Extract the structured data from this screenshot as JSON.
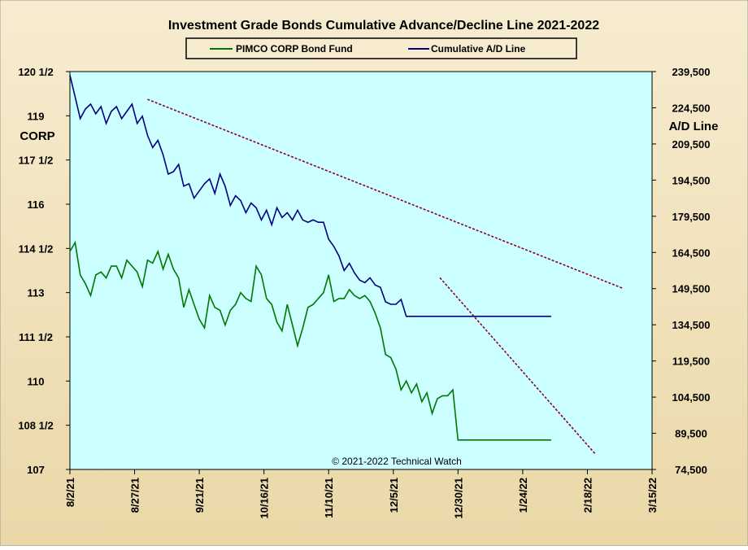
{
  "chart_data": {
    "type": "line",
    "title": "Investment Grade Bonds Cumulative  Advance/Decline  Line  2021-2022",
    "copyright": "© 2021-2022  Technical  Watch",
    "left_axis_label": "CORP",
    "right_axis_label": "A/D Line",
    "colors": {
      "background": "#f5e8c8",
      "plot_area": "#ccffff",
      "corp_line": "#007700",
      "ad_line": "#000080",
      "trendline": "#8b0020"
    },
    "grid": false,
    "legend_position": "top-center",
    "x_ticks": [
      "8/2/21",
      "8/27/21",
      "9/21/21",
      "10/16/21",
      "11/10/21",
      "12/5/21",
      "12/30/21",
      "1/24/22",
      "2/18/22",
      "3/15/22"
    ],
    "x_tick_days": [
      0,
      25,
      50,
      75,
      100,
      125,
      150,
      175,
      200,
      225
    ],
    "xlim": [
      0,
      225
    ],
    "left_axis": {
      "ylim": [
        107,
        120.5
      ],
      "ticks": [
        107,
        108.5,
        110,
        111.5,
        113,
        114.5,
        116,
        117.5,
        119,
        120.5
      ],
      "tick_labels": [
        "107",
        "108 1/2",
        "110",
        "111 1/2",
        "113",
        "114 1/2",
        "116",
        "117 1/2",
        "119",
        "120 1/2"
      ]
    },
    "right_axis": {
      "ylim": [
        74500,
        239500
      ],
      "ticks": [
        74500,
        89500,
        104500,
        119500,
        134500,
        149500,
        164500,
        179500,
        194500,
        209500,
        224500,
        239500
      ],
      "tick_labels": [
        "74,500",
        "89,500",
        "104,500",
        "119,500",
        "134,500",
        "149,500",
        "164,500",
        "179,500",
        "194,500",
        "209,500",
        "224,500",
        "239,500"
      ]
    },
    "series": [
      {
        "name": "PIMCO CORP Bond Fund",
        "axis": "left",
        "x": [
          0,
          2,
          4,
          6,
          8,
          10,
          12,
          14,
          16,
          18,
          20,
          22,
          24,
          26,
          28,
          30,
          32,
          34,
          36,
          38,
          40,
          42,
          44,
          46,
          48,
          50,
          52,
          54,
          56,
          58,
          60,
          62,
          64,
          66,
          68,
          70,
          72,
          74,
          76,
          78,
          80,
          82,
          84,
          86,
          88,
          90,
          92,
          94,
          96,
          98,
          100,
          102,
          104,
          106,
          108,
          110,
          112,
          114,
          116,
          118,
          120,
          122,
          124,
          126,
          128,
          130,
          132,
          134,
          136,
          138,
          140,
          142,
          144,
          146,
          148,
          150,
          152,
          154,
          156,
          158,
          160,
          162,
          164,
          166,
          168,
          170,
          172,
          174,
          176,
          178,
          180,
          182,
          184,
          186
        ],
        "y": [
          114.4,
          114.7,
          113.6,
          113.3,
          112.9,
          113.6,
          113.7,
          113.5,
          113.9,
          113.9,
          113.5,
          114.1,
          113.9,
          113.7,
          113.2,
          114.1,
          114.0,
          114.4,
          113.8,
          114.3,
          113.8,
          113.5,
          112.5,
          113.1,
          112.6,
          112.1,
          111.8,
          112.9,
          112.5,
          112.4,
          111.9,
          112.4,
          112.6,
          113.0,
          112.8,
          112.7,
          113.9,
          113.6,
          112.8,
          112.6,
          112.0,
          111.7,
          112.6,
          111.9,
          111.2,
          111.8,
          112.5,
          112.6,
          112.8,
          113.0,
          113.6,
          112.7,
          112.8,
          112.8,
          113.1,
          112.9,
          112.8,
          112.9,
          112.7,
          112.3,
          111.8,
          110.9,
          110.8,
          110.4,
          109.7,
          110.0,
          109.6,
          109.9,
          109.3,
          109.6,
          108.9,
          109.4,
          109.5,
          109.5,
          109.7,
          108.0,
          108.0,
          108.0,
          108.0,
          108.0,
          108.0,
          108.0,
          108.0,
          108.0,
          108.0,
          108.0,
          108.0,
          108.0,
          108.0,
          108.0,
          108.0,
          108.0,
          108.0,
          108.0
        ]
      },
      {
        "name": "Cumulative A/D Line",
        "axis": "right",
        "x": [
          0,
          2,
          4,
          6,
          8,
          10,
          12,
          14,
          16,
          18,
          20,
          22,
          24,
          26,
          28,
          30,
          32,
          34,
          36,
          38,
          40,
          42,
          44,
          46,
          48,
          50,
          52,
          54,
          56,
          58,
          60,
          62,
          64,
          66,
          68,
          70,
          72,
          74,
          76,
          78,
          80,
          82,
          84,
          86,
          88,
          90,
          92,
          94,
          96,
          98,
          100,
          102,
          104,
          106,
          108,
          110,
          112,
          114,
          116,
          118,
          120,
          122,
          124,
          126,
          128,
          130,
          132,
          134,
          136,
          138,
          140,
          142,
          144,
          146,
          148,
          150,
          152,
          154,
          156,
          158,
          160,
          162,
          164,
          166,
          168,
          170,
          172,
          174,
          176,
          178,
          180,
          182,
          184,
          186
        ],
        "y": [
          238000,
          229000,
          220000,
          224000,
          226000,
          222000,
          225000,
          218000,
          223000,
          225000,
          220000,
          223000,
          226000,
          218000,
          221000,
          213000,
          208000,
          211000,
          205000,
          197000,
          198000,
          201000,
          192000,
          193000,
          187000,
          190000,
          193000,
          195000,
          189000,
          197000,
          192000,
          184000,
          188000,
          186000,
          181000,
          185000,
          183000,
          178000,
          182000,
          176000,
          183000,
          179000,
          181000,
          178000,
          182000,
          178000,
          177000,
          178000,
          177000,
          177000,
          170000,
          167000,
          163000,
          157000,
          160000,
          156000,
          153000,
          152000,
          154000,
          151000,
          150000,
          144000,
          143000,
          143000,
          145000,
          138000,
          138000,
          138000,
          138000,
          138000,
          138000,
          138000,
          138000,
          138000,
          138000,
          138000,
          138000,
          138000,
          138000,
          138000,
          138000,
          138000,
          138000,
          138000,
          138000,
          138000,
          138000,
          138000,
          138000,
          138000,
          138000,
          138000,
          138000,
          138000
        ]
      }
    ],
    "trendlines": [
      {
        "axis": "right",
        "x": [
          30,
          214
        ],
        "y": [
          228000,
          149500
        ]
      },
      {
        "axis": "right",
        "x": [
          143,
          203
        ],
        "y": [
          154000,
          81000
        ]
      }
    ]
  }
}
